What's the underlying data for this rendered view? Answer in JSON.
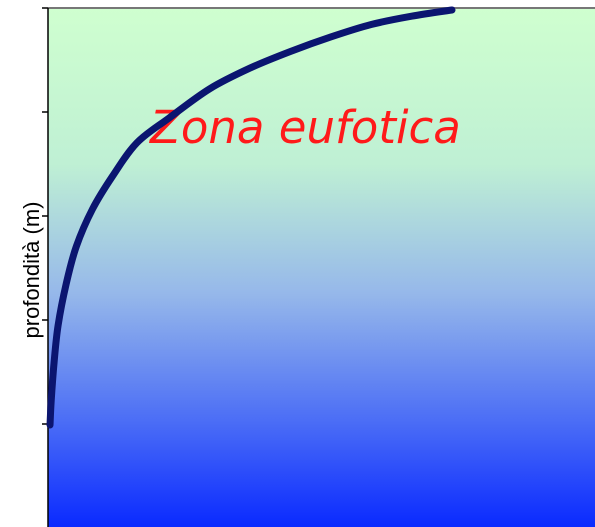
{
  "chart_data": {
    "type": "line",
    "title": "",
    "xlabel": "",
    "ylabel": "profondità (m)",
    "annotation": "Zona eufotica",
    "y_inverted": true,
    "x_tick_labels": [],
    "y_tick_labels": [],
    "xlim": [
      0,
      100
    ],
    "ylim": [
      0,
      100
    ],
    "series": [
      {
        "color": "#0b1570",
        "points": [
          [
            100,
            0
          ],
          [
            90,
            1.5
          ],
          [
            80,
            3.5
          ],
          [
            70,
            6.5
          ],
          [
            60,
            10
          ],
          [
            50,
            14
          ],
          [
            40,
            19
          ],
          [
            30,
            26
          ],
          [
            22,
            32
          ],
          [
            16,
            40
          ],
          [
            11,
            48
          ],
          [
            7,
            57
          ],
          [
            4.5,
            66
          ],
          [
            2.5,
            76
          ],
          [
            1.5,
            85
          ],
          [
            0.8,
            94
          ],
          [
            0.5,
            100
          ]
        ]
      }
    ],
    "background_gradient": [
      "#cfffcf",
      "#0a2aff"
    ],
    "annotation_color": "#ff1a1a"
  }
}
